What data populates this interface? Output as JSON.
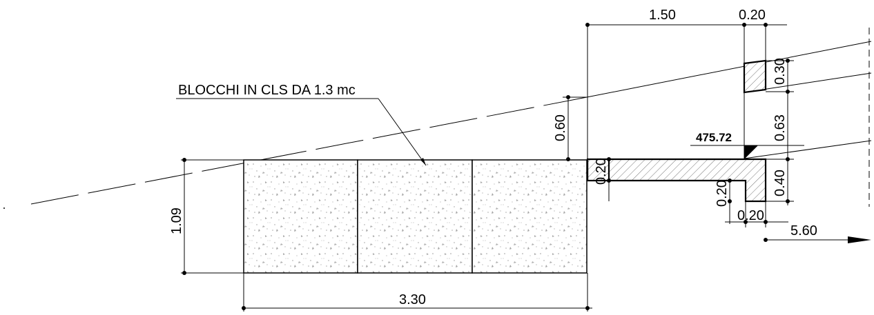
{
  "labels": {
    "blocks": "BLOCCHI IN CLS DA 1.3 mc",
    "elevation": "475.72"
  },
  "dimensions": {
    "top_width": "1.50",
    "top_thickness": "0.20",
    "right_upper": "0.30",
    "right_middle": "0.63",
    "right_lower": "0.40",
    "left_height": "0.60",
    "slab_thickness": "0.20",
    "step_height": "0.20",
    "step_width": "0.20",
    "block_height": "1.09",
    "block_width": "3.30",
    "distance": "5.60"
  }
}
